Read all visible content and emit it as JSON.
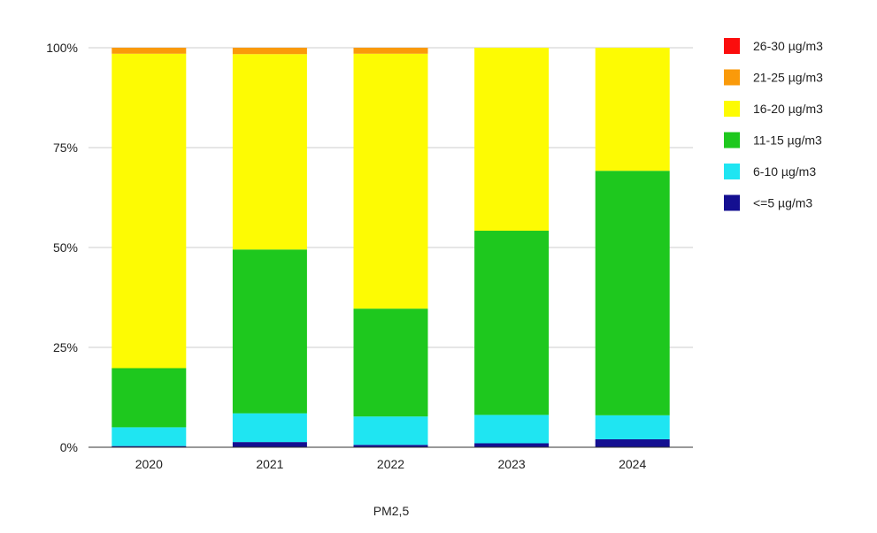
{
  "chart_data": {
    "type": "bar",
    "stacked": true,
    "normalized_percent": true,
    "title": "",
    "xlabel": "PM2,5",
    "ylabel": "",
    "ylim": [
      0,
      100
    ],
    "yticks": [
      "0%",
      "25%",
      "50%",
      "75%",
      "100%"
    ],
    "ytick_values": [
      0,
      25,
      50,
      75,
      100
    ],
    "grid": true,
    "legend_position": "right",
    "categories": [
      "2020",
      "2021",
      "2022",
      "2023",
      "2024"
    ],
    "series": [
      {
        "name": "<=5 µg/m3",
        "color": "#140f91",
        "values": [
          0.3,
          1.3,
          0.6,
          1.0,
          2.0
        ]
      },
      {
        "name": "6-10 µg/m3",
        "color": "#1fe5f2",
        "values": [
          4.7,
          7.2,
          7.1,
          7.1,
          6.0
        ]
      },
      {
        "name": "11-15 µg/m3",
        "color": "#1ec81e",
        "values": [
          14.8,
          41.0,
          27.0,
          46.1,
          61.2
        ]
      },
      {
        "name": "16-20 µg/m3",
        "color": "#fdfb03",
        "values": [
          78.7,
          48.9,
          63.8,
          45.8,
          30.8
        ]
      },
      {
        "name": "21-25 µg/m3",
        "color": "#fa9a0a",
        "values": [
          1.5,
          1.6,
          1.5,
          0.0,
          0.0
        ]
      },
      {
        "name": "26-30 µg/m3",
        "color": "#fb0d0d",
        "values": [
          0.0,
          0.0,
          0.0,
          0.0,
          0.0
        ]
      }
    ],
    "legend_order": [
      "26-30 µg/m3",
      "21-25 µg/m3",
      "16-20 µg/m3",
      "11-15 µg/m3",
      "6-10 µg/m3",
      "<=5 µg/m3"
    ]
  }
}
